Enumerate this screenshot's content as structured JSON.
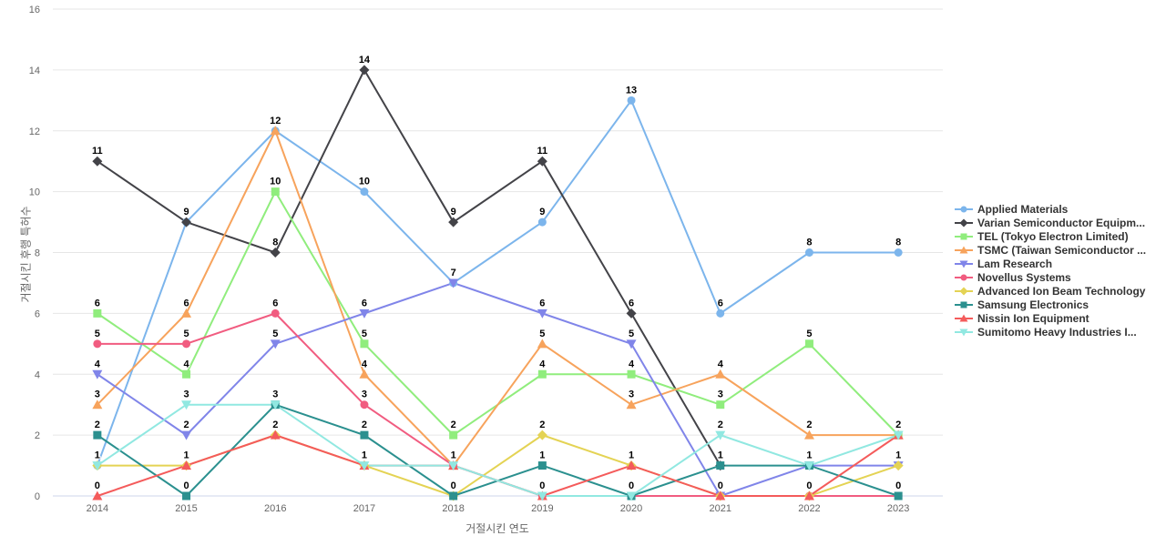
{
  "chart_data": {
    "type": "line",
    "title": "",
    "xlabel": "거절시킨 연도",
    "ylabel": "거절시킨 후행 특허수",
    "ylim": [
      0,
      16
    ],
    "ytick_step": 2,
    "grid": true,
    "legend_position": "right",
    "data_labels": true,
    "categories": [
      "2014",
      "2015",
      "2016",
      "2017",
      "2018",
      "2019",
      "2020",
      "2021",
      "2022",
      "2023"
    ],
    "series": [
      {
        "name": "Applied Materials",
        "color": "#7cb5ec",
        "marker": "circle",
        "values": [
          1,
          9,
          12,
          10,
          7,
          9,
          13,
          6,
          8,
          8
        ]
      },
      {
        "name": "Varian Semiconductor Equipm...",
        "color": "#434348",
        "marker": "diamond",
        "values": [
          11,
          9,
          8,
          14,
          9,
          11,
          6,
          1,
          null,
          null
        ]
      },
      {
        "name": "TEL (Tokyo Electron Limited)",
        "color": "#90ed7d",
        "marker": "square",
        "values": [
          6,
          4,
          10,
          5,
          2,
          4,
          4,
          3,
          5,
          2
        ]
      },
      {
        "name": "TSMC (Taiwan Semiconductor ...",
        "color": "#f7a35c",
        "marker": "triangle",
        "values": [
          3,
          6,
          12,
          4,
          1,
          5,
          3,
          4,
          2,
          2
        ]
      },
      {
        "name": "Lam Research",
        "color": "#8085e9",
        "marker": "triangle-down",
        "values": [
          4,
          2,
          5,
          6,
          7,
          6,
          5,
          0,
          1,
          1
        ]
      },
      {
        "name": "Novellus Systems",
        "color": "#f15c80",
        "marker": "circle",
        "values": [
          5,
          5,
          6,
          3,
          1,
          0,
          0,
          0,
          0,
          0
        ]
      },
      {
        "name": "Advanced Ion Beam Technology",
        "color": "#e4d354",
        "marker": "diamond",
        "values": [
          1,
          1,
          2,
          1,
          0,
          2,
          1,
          0,
          0,
          1
        ]
      },
      {
        "name": "Samsung Electronics",
        "color": "#2b908f",
        "marker": "square",
        "values": [
          2,
          0,
          3,
          2,
          0,
          1,
          0,
          1,
          1,
          0
        ]
      },
      {
        "name": "Nissin Ion Equipment",
        "color": "#f45b5b",
        "marker": "triangle",
        "values": [
          0,
          1,
          2,
          1,
          1,
          0,
          1,
          0,
          0,
          2
        ]
      },
      {
        "name": "Sumitomo Heavy Industries I...",
        "color": "#91e8e1",
        "marker": "triangle-down",
        "values": [
          1,
          3,
          3,
          1,
          1,
          0,
          0,
          2,
          1,
          2
        ]
      }
    ],
    "colors": {
      "gridline": "#e6e6e6",
      "axis_line": "#ccd6eb",
      "tick_label": "#666666",
      "axis_title": "#666666",
      "legend_text": "#333333",
      "data_label": "#000000",
      "background": "#ffffff"
    }
  }
}
